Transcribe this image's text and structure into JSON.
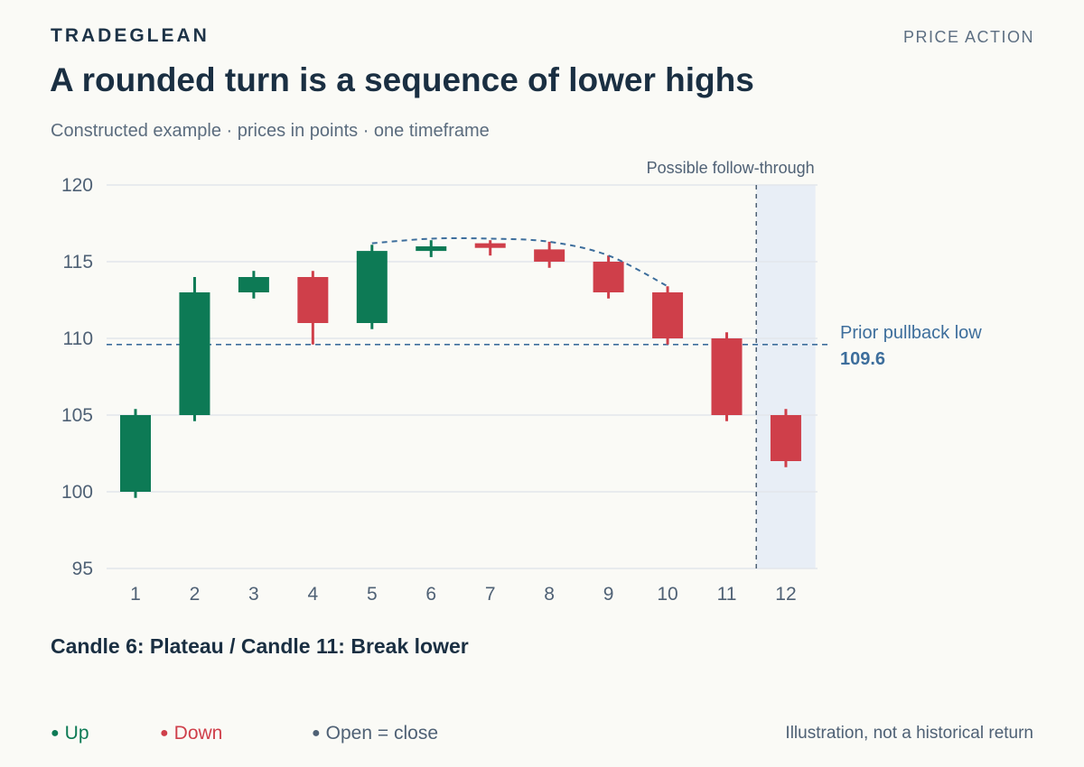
{
  "header": {
    "brand": "TRADEGLEAN",
    "section": "PRICE ACTION",
    "title": "A rounded turn is a sequence of lower highs",
    "subtitle": "Constructed example · prices in points · one timeframe"
  },
  "colors": {
    "up": "#0d7a55",
    "down": "#cf3f4a",
    "flat": "#4f6175",
    "reference": "#3d6e9c",
    "grid": "#e2e6ec",
    "shade": "#e8eef6"
  },
  "chart_data": {
    "type": "candlestick",
    "x_label": "",
    "y_label": "",
    "ylim": [
      95,
      120
    ],
    "y_ticks": [
      95,
      100,
      105,
      110,
      115,
      120
    ],
    "grid": "horizontal",
    "candles": [
      {
        "x": "1",
        "open": 100.0,
        "high": 105.4,
        "low": 99.6,
        "close": 105.0
      },
      {
        "x": "2",
        "open": 105.0,
        "high": 114.0,
        "low": 104.6,
        "close": 113.0
      },
      {
        "x": "3",
        "open": 113.0,
        "high": 114.4,
        "low": 112.6,
        "close": 114.0
      },
      {
        "x": "4",
        "open": 114.0,
        "high": 114.4,
        "low": 109.6,
        "close": 111.0
      },
      {
        "x": "5",
        "open": 111.0,
        "high": 116.1,
        "low": 110.6,
        "close": 115.7
      },
      {
        "x": "6",
        "open": 115.7,
        "high": 116.4,
        "low": 115.3,
        "close": 116.0
      },
      {
        "x": "7",
        "open": 116.2,
        "high": 116.4,
        "low": 115.4,
        "close": 115.9
      },
      {
        "x": "8",
        "open": 115.8,
        "high": 116.3,
        "low": 114.6,
        "close": 115.0
      },
      {
        "x": "9",
        "open": 115.0,
        "high": 115.4,
        "low": 112.6,
        "close": 113.0
      },
      {
        "x": "10",
        "open": 113.0,
        "high": 113.4,
        "low": 109.6,
        "close": 110.0
      },
      {
        "x": "11",
        "open": 110.0,
        "high": 110.4,
        "low": 104.6,
        "close": 105.0
      },
      {
        "x": "12",
        "open": 105.0,
        "high": 105.4,
        "low": 101.6,
        "close": 102.0
      }
    ],
    "rounded_top_curve": [
      {
        "x": 5,
        "y": 116.2
      },
      {
        "x": 6,
        "y": 116.5
      },
      {
        "x": 7,
        "y": 116.5
      },
      {
        "x": 8,
        "y": 116.3
      },
      {
        "x": 9,
        "y": 115.4
      },
      {
        "x": 10,
        "y": 113.4
      }
    ],
    "reference_line": {
      "value": 109.6,
      "label": "Prior pullback low",
      "value_label": "109.6"
    },
    "shaded_region": {
      "from": 11.5,
      "to": 12.5,
      "label": "Possible follow-through"
    }
  },
  "callout": "Candle 6: Plateau / Candle 11: Break lower",
  "legend": {
    "up": "Up",
    "down": "Down",
    "flat": "Open = close"
  },
  "footnote": "Illustration, not a historical return"
}
